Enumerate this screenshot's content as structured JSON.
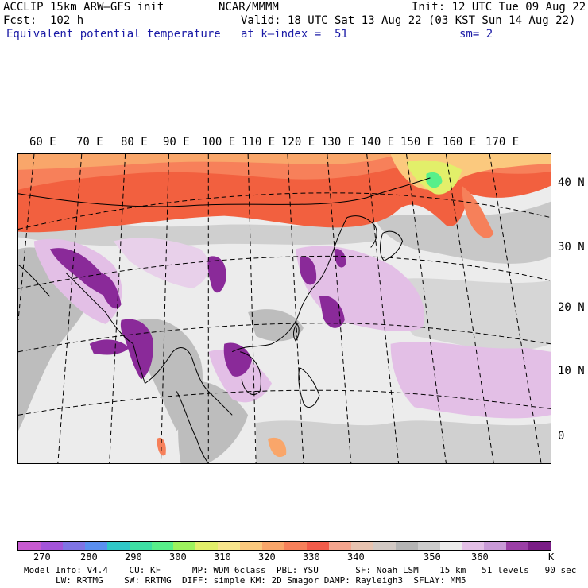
{
  "header": {
    "model": "ACCLIP 15km ARW–GFS init",
    "org": "NCAR/MMMM",
    "init": "Init: 12 UTC Tue 09 Aug 22",
    "fcst": "Fcst:  102 h",
    "valid": "Valid: 18 UTC Sat 13 Aug 22 (03 KST Sun 14 Aug 22)",
    "field": "Equivalent potential temperature",
    "level": "at k–index =  51",
    "smooth": "sm= 2"
  },
  "map": {
    "lon_labels": [
      "60 E",
      "70 E",
      "80 E",
      "90 E",
      "100 E",
      "110 E",
      "120 E",
      "130 E",
      "140 E",
      "150 E",
      "160 E",
      "170 E"
    ],
    "lat_labels": [
      "40 N",
      "30 N",
      "20 N",
      "10 N",
      "0"
    ]
  },
  "colorbar": {
    "colors": [
      "#c75ad1",
      "#a354d9",
      "#7f74e4",
      "#5a8ff0",
      "#2fc7c7",
      "#3ddfa3",
      "#58ef8a",
      "#9df25e",
      "#e2ef6a",
      "#f8e58c",
      "#fbc97e",
      "#f9a66a",
      "#f6805a",
      "#f25c4a",
      "#f4a58e",
      "#e7c3b0",
      "#d2c9c4",
      "#b4b4b4",
      "#cccccc",
      "#ececec",
      "#e3bfe6",
      "#c99ad7",
      "#9b3fa6",
      "#7a1d86"
    ],
    "tick_labels": [
      "270",
      "280",
      "290",
      "300",
      "310",
      "320",
      "330",
      "340",
      "350",
      "360"
    ],
    "unit": "K"
  },
  "footer": {
    "line1": "Model Info: V4.4    CU: KF      MP: WDM 6class  PBL: YSU       SF: Noah LSM    15 km   51 levels   90 sec",
    "line2": "LW: RRTMG    SW: RRTMG  DIFF: simple KM: 2D Smagor DAMP: Rayleigh3  SFLAY: MM5"
  },
  "colors": {
    "title_blue": "#1a1aa6",
    "land_gray": "#bdbdbd",
    "ocean_light": "#ededed",
    "purple": "#8a2a99",
    "orange": "#f2603f"
  }
}
